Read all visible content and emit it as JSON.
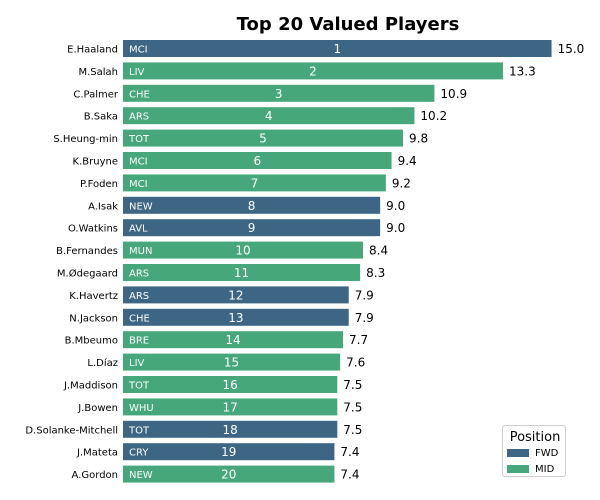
{
  "chart_data": {
    "type": "bar",
    "orientation": "horizontal",
    "title": "Top 20 Valued Players",
    "xlim": [
      0,
      15.75
    ],
    "grid": false,
    "legend_placement": "bottom-right",
    "legend": {
      "title": "Position",
      "entries": [
        {
          "label": "FWD",
          "color": "#3d6584"
        },
        {
          "label": "MID",
          "color": "#46a87a"
        }
      ]
    },
    "players": [
      {
        "name": "E.Haaland",
        "team": "MCI",
        "rank": "1",
        "value": 15.0,
        "value_label": "15.0",
        "position": "FWD"
      },
      {
        "name": "M.Salah",
        "team": "LIV",
        "rank": "2",
        "value": 13.3,
        "value_label": "13.3",
        "position": "MID"
      },
      {
        "name": "C.Palmer",
        "team": "CHE",
        "rank": "3",
        "value": 10.9,
        "value_label": "10.9",
        "position": "MID"
      },
      {
        "name": "B.Saka",
        "team": "ARS",
        "rank": "4",
        "value": 10.2,
        "value_label": "10.2",
        "position": "MID"
      },
      {
        "name": "S.Heung-min",
        "team": "TOT",
        "rank": "5",
        "value": 9.8,
        "value_label": "9.8",
        "position": "MID"
      },
      {
        "name": "K.Bruyne",
        "team": "MCI",
        "rank": "6",
        "value": 9.4,
        "value_label": "9.4",
        "position": "MID"
      },
      {
        "name": "P.Foden",
        "team": "MCI",
        "rank": "7",
        "value": 9.2,
        "value_label": "9.2",
        "position": "MID"
      },
      {
        "name": "A.Isak",
        "team": "NEW",
        "rank": "8",
        "value": 9.0,
        "value_label": "9.0",
        "position": "FWD"
      },
      {
        "name": "O.Watkins",
        "team": "AVL",
        "rank": "9",
        "value": 9.0,
        "value_label": "9.0",
        "position": "FWD"
      },
      {
        "name": "B.Fernandes",
        "team": "MUN",
        "rank": "10",
        "value": 8.4,
        "value_label": "8.4",
        "position": "MID"
      },
      {
        "name": "M.Ødegaard",
        "team": "ARS",
        "rank": "11",
        "value": 8.3,
        "value_label": "8.3",
        "position": "MID"
      },
      {
        "name": "K.Havertz",
        "team": "ARS",
        "rank": "12",
        "value": 7.9,
        "value_label": "7.9",
        "position": "FWD"
      },
      {
        "name": "N.Jackson",
        "team": "CHE",
        "rank": "13",
        "value": 7.9,
        "value_label": "7.9",
        "position": "FWD"
      },
      {
        "name": "B.Mbeumo",
        "team": "BRE",
        "rank": "14",
        "value": 7.7,
        "value_label": "7.7",
        "position": "MID"
      },
      {
        "name": "L.Díaz",
        "team": "LIV",
        "rank": "15",
        "value": 7.6,
        "value_label": "7.6",
        "position": "MID"
      },
      {
        "name": "J.Maddison",
        "team": "TOT",
        "rank": "16",
        "value": 7.5,
        "value_label": "7.5",
        "position": "MID"
      },
      {
        "name": "J.Bowen",
        "team": "WHU",
        "rank": "17",
        "value": 7.5,
        "value_label": "7.5",
        "position": "MID"
      },
      {
        "name": "D.Solanke-Mitchell",
        "team": "TOT",
        "rank": "18",
        "value": 7.5,
        "value_label": "7.5",
        "position": "FWD"
      },
      {
        "name": "J.Mateta",
        "team": "CRY",
        "rank": "19",
        "value": 7.4,
        "value_label": "7.4",
        "position": "FWD"
      },
      {
        "name": "A.Gordon",
        "team": "NEW",
        "rank": "20",
        "value": 7.4,
        "value_label": "7.4",
        "position": "MID"
      }
    ]
  }
}
